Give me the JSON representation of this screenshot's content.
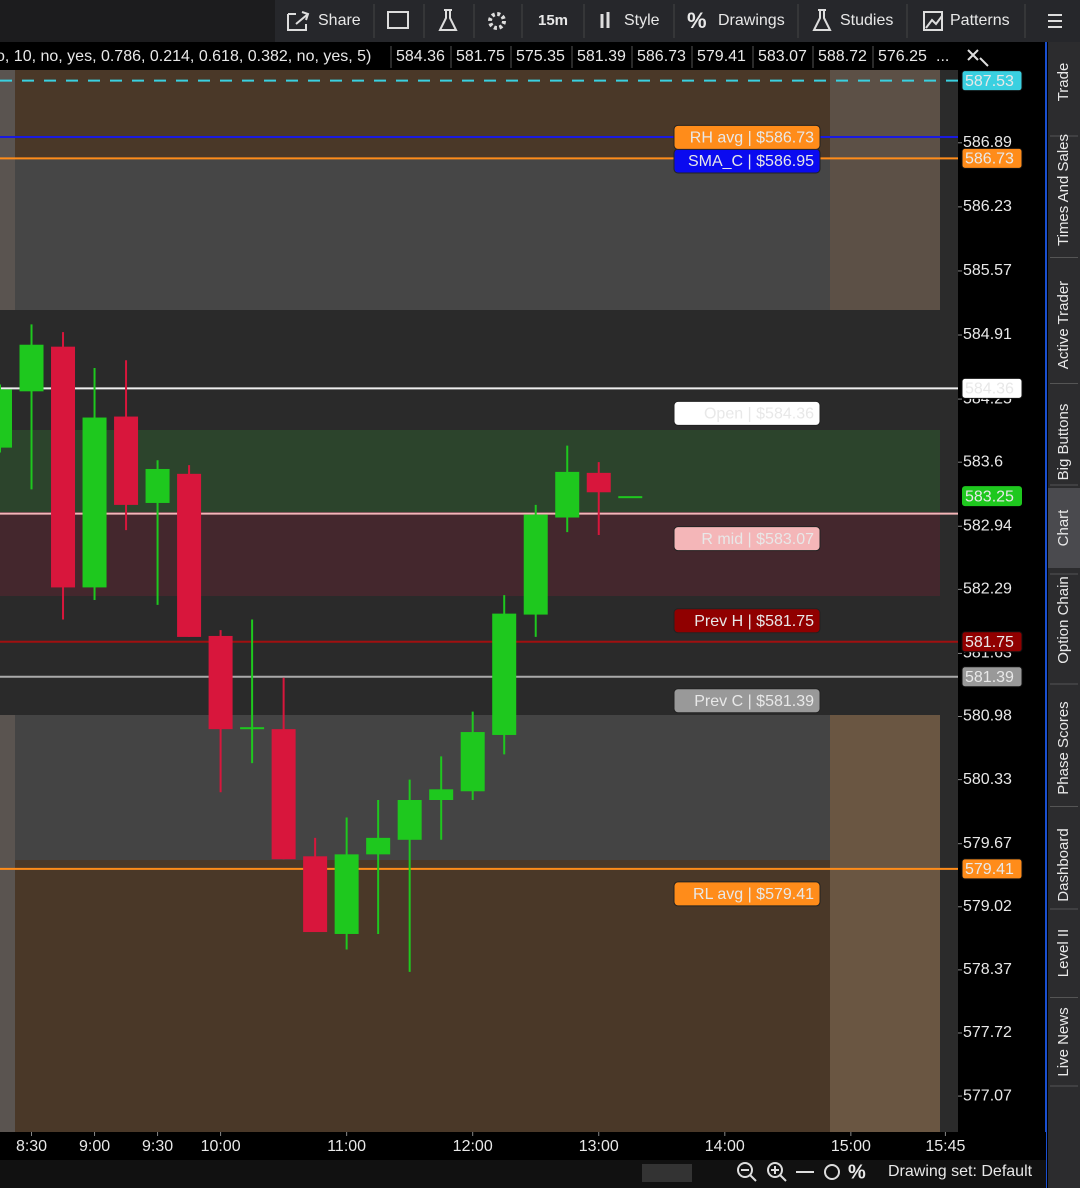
{
  "toolbar": {
    "share": "Share",
    "interval": "15m",
    "style": "Style",
    "drawings": "Drawings",
    "studies": "Studies",
    "patterns": "Patterns"
  },
  "study_bar": {
    "params": "o, 10, no, yes, 0.786, 0.214, 0.618, 0.382, no, yes, 5)",
    "values": [
      {
        "text": "584.36",
        "color": "#ffffff"
      },
      {
        "text": "581.75",
        "color": "#a01010"
      },
      {
        "text": "575.35",
        "color": "#1a7a1a"
      },
      {
        "text": "581.39",
        "color": "#aaaaaa"
      },
      {
        "text": "586.73",
        "color": "#ff9a30"
      },
      {
        "text": "579.41",
        "color": "#ff9a30"
      },
      {
        "text": "583.07",
        "color": "#f4b6b8"
      },
      {
        "text": "588.72",
        "color": "#f0e040"
      },
      {
        "text": "576.25",
        "color": "#f0e040"
      }
    ],
    "more": "..."
  },
  "sidebar": {
    "tabs": [
      "Trade",
      "Times And Sales",
      "Active Trader",
      "Big Buttons",
      "Chart",
      "Option Chain",
      "Phase Scores",
      "Dashboard",
      "Level II",
      "Live News"
    ],
    "active": 4
  },
  "bottom_bar": {
    "drawing_set": "Drawing set: Default"
  },
  "chart_data": {
    "type": "candlestick",
    "x": [
      495,
      510,
      525,
      540,
      555,
      570,
      585,
      600,
      615,
      630,
      645,
      660,
      675,
      690,
      705,
      720,
      735,
      750,
      765,
      780,
      795
    ],
    "open": [
      583.75,
      584.33,
      584.79,
      582.31,
      584.07,
      583.18,
      583.48,
      581.81,
      580.86,
      580.85,
      579.54,
      578.74,
      579.56,
      579.71,
      580.12,
      580.21,
      580.79,
      582.03,
      583.03,
      583.49,
      583.25
    ],
    "high": [
      584.4,
      585.02,
      584.94,
      584.57,
      584.65,
      583.62,
      583.57,
      581.87,
      581.98,
      581.38,
      579.73,
      579.94,
      580.12,
      580.33,
      580.57,
      581.03,
      582.23,
      583.16,
      583.77,
      583.6,
      583.25
    ],
    "low": [
      583.7,
      583.32,
      581.98,
      582.18,
      582.9,
      582.13,
      581.8,
      580.2,
      580.5,
      579.51,
      578.76,
      578.58,
      578.74,
      578.35,
      579.71,
      580.12,
      580.59,
      581.8,
      582.88,
      582.85,
      583.25
    ],
    "close": [
      584.35,
      584.81,
      582.31,
      584.06,
      583.16,
      583.53,
      581.8,
      580.85,
      580.87,
      579.51,
      578.76,
      579.56,
      579.73,
      580.12,
      580.23,
      580.82,
      582.04,
      583.06,
      583.5,
      583.29,
      583.25
    ],
    "up_color": "#1ec81e",
    "down_color": "#d8163c",
    "xlim": [
      495,
      951
    ],
    "xticks": [
      {
        "value": 510,
        "label": "8:30"
      },
      {
        "value": 540,
        "label": "9:00"
      },
      {
        "value": 570,
        "label": "9:30"
      },
      {
        "value": 600,
        "label": "10:00"
      },
      {
        "value": 660,
        "label": "11:00"
      },
      {
        "value": 720,
        "label": "12:00"
      },
      {
        "value": 780,
        "label": "13:00"
      },
      {
        "value": 840,
        "label": "14:00"
      },
      {
        "value": 900,
        "label": "15:00"
      },
      {
        "value": 945,
        "label": "15:45"
      }
    ],
    "ylim": [
      576.7,
      587.64
    ],
    "yticks": [
      586.89,
      586.23,
      585.57,
      584.91,
      584.25,
      583.6,
      582.94,
      582.29,
      581.63,
      580.98,
      580.33,
      579.67,
      579.02,
      578.37,
      577.72,
      577.07
    ],
    "levels": [
      {
        "value": 587.53,
        "color": "#3ad0e0",
        "dashed": true,
        "axis_badge": true,
        "badge_text_color": "#000000"
      },
      {
        "value": 586.95,
        "color": "#1a1ae0",
        "label": "SMA_C | $586.95",
        "label_bg": "#0a0af0",
        "label_color": "#3040ff"
      },
      {
        "value": 586.73,
        "color": "#ff8c1a",
        "label": "RH avg | $586.73",
        "label_bg": "#ff8c1a",
        "label_color": "#222222",
        "axis_badge": true,
        "badge_text_color": "#222222"
      },
      {
        "value": 584.36,
        "color": "#eeeeee",
        "label": "Open | $584.36",
        "label_bg": "#ffffff",
        "label_color": "#111111",
        "axis_badge": true,
        "badge_text_color": "#111111"
      },
      {
        "value": 583.07,
        "color": "#f4b6b8",
        "label": "R mid | $583.07",
        "label_bg": "#f4b6b8",
        "label_color": "#222222"
      },
      {
        "value": 581.75,
        "color": "#a01010",
        "label": "Prev H | $581.75",
        "label_bg": "#900000",
        "label_color": "#c03030",
        "axis_badge": true,
        "badge_text_color": "#ffffff"
      },
      {
        "value": 581.39,
        "color": "#aaaaaa",
        "label": "Prev C | $581.39",
        "label_bg": "#999999",
        "label_color": "#111111",
        "axis_badge": true,
        "badge_text_color": "#ffffff"
      },
      {
        "value": 579.41,
        "color": "#ff8c1a",
        "label": "RL avg | $579.41",
        "label_bg": "#ff8c1a",
        "label_color": "#222222",
        "axis_badge": true,
        "badge_text_color": "#222222"
      }
    ],
    "current_price": 583.25,
    "current_price_color": "#1ec81e"
  }
}
